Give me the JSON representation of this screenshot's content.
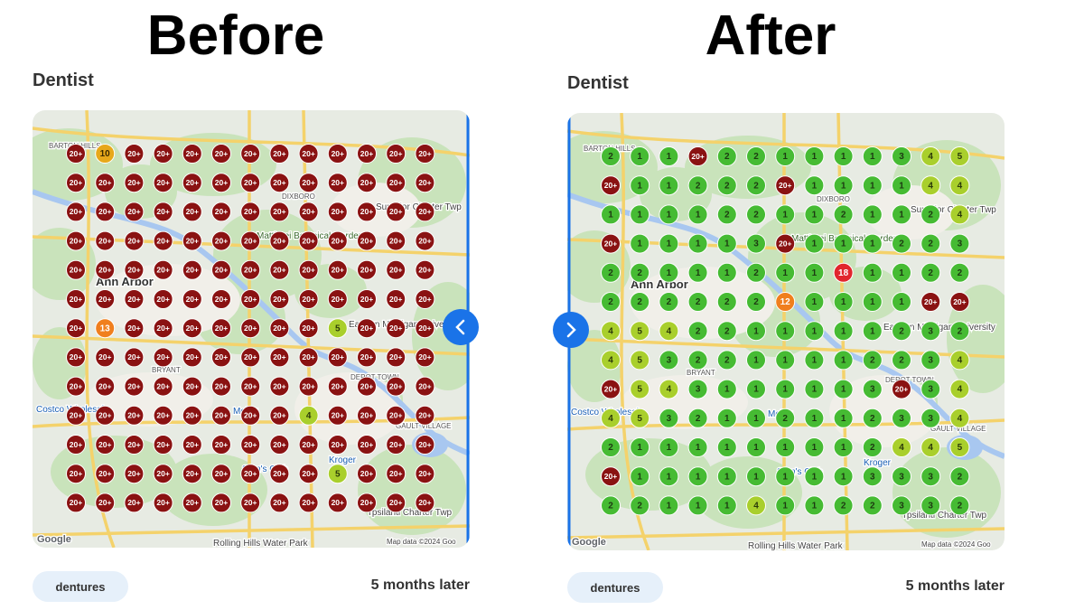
{
  "panels": [
    {
      "heading": "Before",
      "category": "Dentist",
      "keyword": "dentures",
      "timeframe": "5 months later",
      "grid": [
        [
          "20+",
          "10",
          "20+",
          "20+",
          "20+",
          "20+",
          "20+",
          "20+",
          "20+",
          "20+",
          "20+",
          "20+",
          "20+"
        ],
        [
          "20+",
          "20+",
          "20+",
          "20+",
          "20+",
          "20+",
          "20+",
          "20+",
          "20+",
          "20+",
          "20+",
          "20+",
          "20+"
        ],
        [
          "20+",
          "20+",
          "20+",
          "20+",
          "20+",
          "20+",
          "20+",
          "20+",
          "20+",
          "20+",
          "20+",
          "20+",
          "20+"
        ],
        [
          "20+",
          "20+",
          "20+",
          "20+",
          "20+",
          "20+",
          "20+",
          "20+",
          "20+",
          "20+",
          "20+",
          "20+",
          "20+"
        ],
        [
          "20+",
          "20+",
          "20+",
          "20+",
          "20+",
          "20+",
          "20+",
          "20+",
          "20+",
          "20+",
          "20+",
          "20+",
          "20+"
        ],
        [
          "20+",
          "20+",
          "20+",
          "20+",
          "20+",
          "20+",
          "20+",
          "20+",
          "20+",
          "20+",
          "20+",
          "20+",
          "20+"
        ],
        [
          "20+",
          "13",
          "20+",
          "20+",
          "20+",
          "20+",
          "20+",
          "20+",
          "20+",
          "5",
          "20+",
          "20+",
          "20+"
        ],
        [
          "20+",
          "20+",
          "20+",
          "20+",
          "20+",
          "20+",
          "20+",
          "20+",
          "20+",
          "20+",
          "20+",
          "20+",
          "20+"
        ],
        [
          "20+",
          "20+",
          "20+",
          "20+",
          "20+",
          "20+",
          "20+",
          "20+",
          "20+",
          "20+",
          "20+",
          "20+",
          "20+"
        ],
        [
          "20+",
          "20+",
          "20+",
          "20+",
          "20+",
          "20+",
          "20+",
          "20+",
          "4",
          "20+",
          "20+",
          "20+",
          "20+"
        ],
        [
          "20+",
          "20+",
          "20+",
          "20+",
          "20+",
          "20+",
          "20+",
          "20+",
          "20+",
          "20+",
          "20+",
          "20+",
          "20+"
        ],
        [
          "20+",
          "20+",
          "20+",
          "20+",
          "20+",
          "20+",
          "20+",
          "20+",
          "20+",
          "5",
          "20+",
          "20+",
          "20+"
        ],
        [
          "20+",
          "20+",
          "20+",
          "20+",
          "20+",
          "20+",
          "20+",
          "20+",
          "20+",
          "20+",
          "20+",
          "20+",
          "20+"
        ]
      ]
    },
    {
      "heading": "After",
      "category": "Dentist",
      "keyword": "dentures",
      "timeframe": "5 months later",
      "grid": [
        [
          "2",
          "1",
          "1",
          "20+",
          "2",
          "2",
          "1",
          "1",
          "1",
          "1",
          "3",
          "4",
          "5"
        ],
        [
          "20+",
          "1",
          "1",
          "2",
          "2",
          "2",
          "20+",
          "1",
          "1",
          "1",
          "1",
          "4",
          "4"
        ],
        [
          "1",
          "1",
          "1",
          "1",
          "2",
          "2",
          "1",
          "1",
          "2",
          "1",
          "1",
          "2",
          "4"
        ],
        [
          "20+",
          "1",
          "1",
          "1",
          "1",
          "3",
          "20+",
          "1",
          "1",
          "1",
          "2",
          "2",
          "3"
        ],
        [
          "2",
          "2",
          "1",
          "1",
          "1",
          "2",
          "1",
          "1",
          "18",
          "1",
          "1",
          "2",
          "2"
        ],
        [
          "2",
          "2",
          "2",
          "2",
          "2",
          "2",
          "12",
          "1",
          "1",
          "1",
          "1",
          "20+",
          "20+"
        ],
        [
          "4",
          "5",
          "4",
          "2",
          "2",
          "1",
          "1",
          "1",
          "1",
          "1",
          "2",
          "3",
          "2"
        ],
        [
          "4",
          "5",
          "3",
          "2",
          "2",
          "1",
          "1",
          "1",
          "1",
          "2",
          "2",
          "3",
          "4"
        ],
        [
          "20+",
          "5",
          "4",
          "3",
          "1",
          "1",
          "1",
          "1",
          "1",
          "3",
          "20+",
          "3",
          "4"
        ],
        [
          "4",
          "5",
          "3",
          "2",
          "1",
          "1",
          "2",
          "1",
          "1",
          "2",
          "3",
          "3",
          "4"
        ],
        [
          "2",
          "1",
          "1",
          "1",
          "1",
          "1",
          "1",
          "1",
          "1",
          "2",
          "4",
          "4",
          "5"
        ],
        [
          "20+",
          "1",
          "1",
          "1",
          "1",
          "1",
          "1",
          "1",
          "1",
          "3",
          "3",
          "3",
          "2"
        ],
        [
          "2",
          "2",
          "1",
          "1",
          "1",
          "4",
          "1",
          "1",
          "2",
          "2",
          "3",
          "3",
          "2"
        ]
      ]
    }
  ],
  "map_labels": [
    "Ann Arbor",
    "Superior Charter Twp",
    "Matthaei Botanical Gardens",
    "Eastern Michigan University",
    "Meijer",
    "Kroger",
    "Sam's Club",
    "DEPOT TOWN",
    "DIXBORO",
    "BARTON HILLS",
    "BRYANT",
    "GAULT VILLAGE",
    "Costco Wholesale",
    "Ypsilanti Charter Twp",
    "Rolling Hills Water Park",
    "Google",
    "Map data ©2024 Goo"
  ]
}
